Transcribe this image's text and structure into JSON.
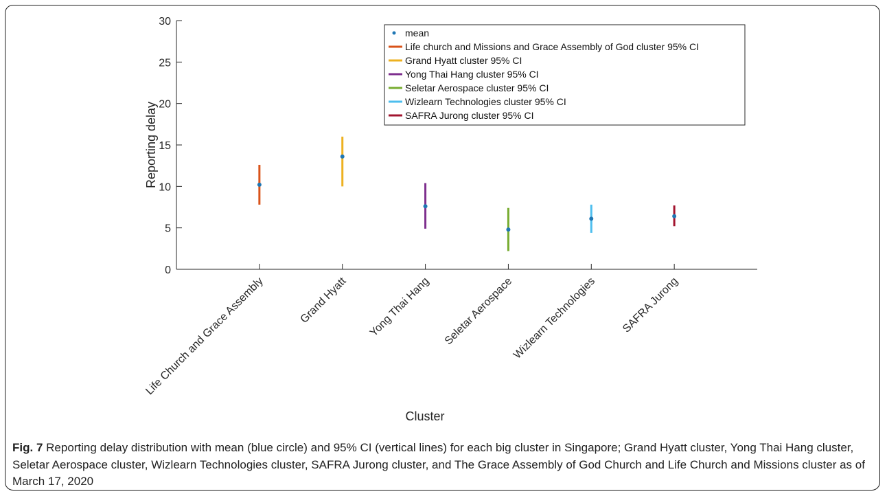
{
  "chart_data": {
    "type": "scatter",
    "xlabel": "Cluster",
    "ylabel": "Reporting delay",
    "ylim": [
      0,
      30
    ],
    "yticks": [
      0,
      5,
      10,
      15,
      20,
      25,
      30
    ],
    "grid": false,
    "legend_position": "top-right",
    "categories": [
      "Life Church and Grace Assembly",
      "Grand Hyatt",
      "Yong Thai Hang",
      "Seletar Aerospace",
      "Wizlearn Technologies",
      "SAFRA Jurong"
    ],
    "mean_label": "mean",
    "mean_color": "#1f77b4",
    "means": [
      10.2,
      13.6,
      7.6,
      4.8,
      6.1,
      6.4
    ],
    "series": [
      {
        "name": "Life church and Missions and Grace Assembly of God cluster 95% CI",
        "color": "#d95319",
        "low": 7.8,
        "high": 12.6
      },
      {
        "name": "Grand Hyatt cluster 95% CI",
        "color": "#edb120",
        "low": 10.0,
        "high": 16.0
      },
      {
        "name": "Yong Thai Hang cluster 95% CI",
        "color": "#7e2f8e",
        "low": 4.9,
        "high": 10.4
      },
      {
        "name": "Seletar Aerospace cluster 95% CI",
        "color": "#77ac30",
        "low": 2.2,
        "high": 7.4
      },
      {
        "name": "Wizlearn Technologies cluster 95% CI",
        "color": "#4dbeee",
        "low": 4.4,
        "high": 7.8
      },
      {
        "name": "SAFRA Jurong cluster 95% CI",
        "color": "#a2142f",
        "low": 5.2,
        "high": 7.7
      }
    ]
  },
  "caption": {
    "label": "Fig. 7",
    "text": " Reporting delay distribution with mean (blue circle) and 95% CI (vertical lines) for each big cluster in Singapore; Grand Hyatt cluster, Yong Thai Hang cluster, Seletar Aerospace cluster, Wizlearn Technologies cluster, SAFRA Jurong cluster, and The Grace Assembly of God Church and Life Church and Missions cluster as of March 17, 2020"
  }
}
